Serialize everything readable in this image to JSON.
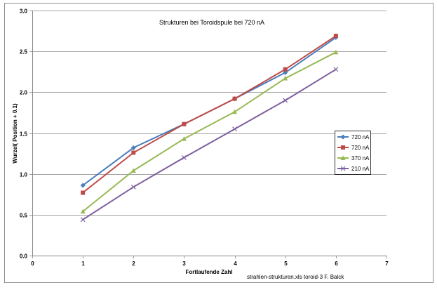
{
  "chart_data": {
    "type": "line",
    "title": "Strukturen bei Toroidspule  bei 720 nA",
    "xlabel": "Fortlaufende Zahl",
    "ylabel": "Wurzel( Position + 0.1)",
    "footnote": "strahlen-strukturen.xls toroid-3   F. Balck",
    "xlim": [
      0,
      7
    ],
    "ylim": [
      0,
      3
    ],
    "x_ticks": [
      "0",
      "1",
      "2",
      "3",
      "4",
      "5",
      "6",
      "7"
    ],
    "y_ticks": [
      "0.0",
      "0.5",
      "1.0",
      "1.5",
      "2.0",
      "2.5",
      "3.0"
    ],
    "grid": "horizontal",
    "legend_position": "right",
    "series": [
      {
        "name": "720 nA",
        "color": "#4A7EBB",
        "marker": "diamond",
        "x": [
          1,
          2,
          3,
          4,
          5,
          6
        ],
        "y": [
          0.86,
          1.32,
          1.61,
          1.92,
          2.24,
          2.67
        ]
      },
      {
        "name": "720 nA",
        "color": "#BE4B48",
        "marker": "square",
        "x": [
          1,
          2,
          3,
          4,
          5,
          6
        ],
        "y": [
          0.77,
          1.26,
          1.61,
          1.92,
          2.28,
          2.69
        ]
      },
      {
        "name": "370 nA",
        "color": "#98B954",
        "marker": "triangle",
        "x": [
          1,
          2,
          3,
          4,
          5,
          6
        ],
        "y": [
          0.54,
          1.04,
          1.43,
          1.76,
          2.17,
          2.49
        ]
      },
      {
        "name": "210 nA",
        "color": "#7D60A0",
        "marker": "x",
        "x": [
          1,
          2,
          3,
          4,
          5,
          6
        ],
        "y": [
          0.44,
          0.84,
          1.2,
          1.55,
          1.9,
          2.28
        ]
      }
    ]
  }
}
